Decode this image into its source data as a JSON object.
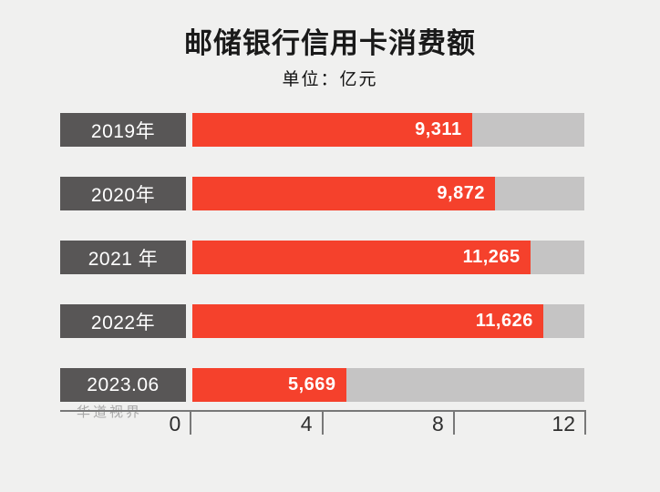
{
  "title": "邮储银行信用卡消费额",
  "subtitle": "单位：亿元",
  "watermark": "华道视界",
  "chart_data": {
    "type": "bar",
    "orientation": "horizontal",
    "title": "邮储银行信用卡消费额",
    "subtitle_unit": "单位：亿元",
    "categories": [
      "2019年",
      "2020年",
      "2021 年",
      "2022年",
      "2023.06"
    ],
    "values": [
      9311,
      9872,
      11265,
      11626,
      5669
    ],
    "value_labels": [
      "9,311",
      "9,872",
      "11,265",
      "11,626",
      "5,669"
    ],
    "bar_fill_pct": [
      71.3,
      77.2,
      86.2,
      89.5,
      39.2
    ],
    "x_axis": {
      "ticks": [
        "0",
        "4",
        "8",
        "12"
      ],
      "range": [
        0,
        12
      ]
    },
    "grid": false,
    "legend": "none",
    "colors": {
      "bar": "#f5412c",
      "track": "#c5c4c4",
      "label_box": "#585656",
      "value_text": "#ffffff",
      "category_text": "#ffffff",
      "background": "#f0f0ef"
    }
  }
}
